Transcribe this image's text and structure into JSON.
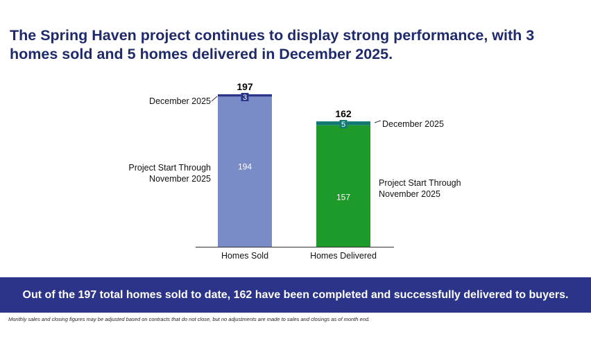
{
  "title": "The Spring Haven project continues to display strong performance, with 3 homes sold and 5 homes delivered in December 2025.",
  "chart_data": {
    "type": "bar",
    "stacked": true,
    "categories": [
      "Homes Sold",
      "Homes Delivered"
    ],
    "series": [
      {
        "name": "Project Start Through November 2025",
        "values": [
          194,
          157
        ]
      },
      {
        "name": "December 2025",
        "values": [
          3,
          5
        ]
      }
    ],
    "totals": [
      197,
      162
    ],
    "ylim": [
      0,
      197
    ],
    "grid": false,
    "colors": {
      "sold_base": "#7a8cc8",
      "sold_top": "#2b3488",
      "delivered_base": "#1e9a2a",
      "delivered_top": "#127a72"
    }
  },
  "labels": {
    "sold_december": "December 2025",
    "sold_project_start_line1": "Project Start Through",
    "sold_project_start_line2": "November 2025",
    "delivered_december": "December 2025",
    "delivered_project_start_line1": "Project Start Through",
    "delivered_project_start_line2": "November 2025"
  },
  "banner": "Out of the 197 total homes sold to date, 162 have been completed and successfully delivered to buyers.",
  "footnote": "Monthly sales and closing figures may be adjusted based on contracts that do not close, but no adjustments are made to sales and closings as of month end."
}
